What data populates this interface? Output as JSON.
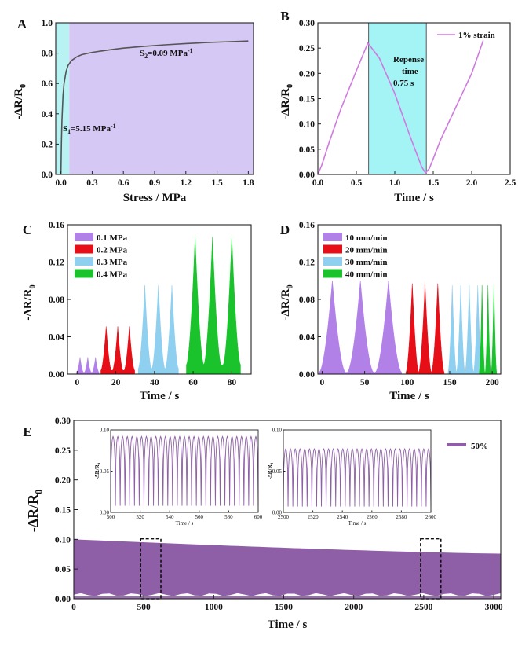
{
  "chart_data": [
    {
      "panel": "A",
      "type": "line",
      "xlabel": "Stress / MPa",
      "ylabel": "-ΔR/R0",
      "xlim": [
        -0.05,
        1.85
      ],
      "ylim": [
        0,
        1.0
      ],
      "xticks": [
        "0.0",
        "0.3",
        "0.6",
        "0.9",
        "1.2",
        "1.5",
        "1.8"
      ],
      "yticks": [
        "0.0",
        "0.2",
        "0.4",
        "0.6",
        "0.8",
        "1.0"
      ],
      "regions": [
        {
          "x0": -0.05,
          "x1": 0.08,
          "color": "#b9f2f3"
        },
        {
          "x0": 0.08,
          "x1": 1.85,
          "color": "#d6c8f4"
        }
      ],
      "series": [
        {
          "name": "response",
          "color": "#555555",
          "x": [
            0.0,
            0.005,
            0.01,
            0.02,
            0.03,
            0.05,
            0.07,
            0.1,
            0.15,
            0.2,
            0.3,
            0.4,
            0.5,
            0.6,
            0.8,
            1.0,
            1.2,
            1.4,
            1.6,
            1.8
          ],
          "y": [
            0.0,
            0.22,
            0.36,
            0.52,
            0.6,
            0.68,
            0.72,
            0.75,
            0.775,
            0.79,
            0.805,
            0.815,
            0.825,
            0.833,
            0.845,
            0.855,
            0.863,
            0.87,
            0.875,
            0.88
          ]
        }
      ],
      "annotations": [
        {
          "main": "S",
          "sub": "1",
          "tail": "=5.15 MPa",
          "sup": "-1"
        },
        {
          "main": "S",
          "sub": "2",
          "tail": "=0.09 MPa",
          "sup": "-1"
        }
      ]
    },
    {
      "panel": "B",
      "type": "line",
      "xlabel": "Time / s",
      "ylabel": "-ΔR/R0",
      "xlim": [
        0,
        2.5
      ],
      "ylim": [
        0,
        0.3
      ],
      "xticks": [
        "0.0",
        "0.5",
        "1.0",
        "1.5",
        "2.0",
        "2.5"
      ],
      "yticks": [
        "0.00",
        "0.05",
        "0.10",
        "0.15",
        "0.20",
        "0.25",
        "0.30"
      ],
      "regions": [
        {
          "x0": 0.66,
          "x1": 1.41,
          "color": "#a4f3f5"
        }
      ],
      "series": [
        {
          "name": "1% strain",
          "color": "#d07ae0",
          "x": [
            0.0,
            0.05,
            0.15,
            0.3,
            0.5,
            0.65,
            0.8,
            1.0,
            1.2,
            1.35,
            1.4,
            1.45,
            1.6,
            1.8,
            2.0,
            2.15
          ],
          "y": [
            0.0,
            0.018,
            0.065,
            0.13,
            0.205,
            0.26,
            0.23,
            0.16,
            0.075,
            0.015,
            0.003,
            0.012,
            0.07,
            0.135,
            0.2,
            0.265
          ]
        }
      ],
      "annotations": [
        "Repense",
        "time",
        "0.75 s"
      ]
    },
    {
      "panel": "C",
      "type": "area",
      "xlabel": "Time / s",
      "ylabel": "-ΔR/R0",
      "xlim": [
        -5,
        90
      ],
      "ylim": [
        0,
        0.16
      ],
      "xticks": [
        "0",
        "20",
        "40",
        "60",
        "80"
      ],
      "yticks": [
        "0.00",
        "0.04",
        "0.08",
        "0.12",
        "0.16"
      ],
      "series": [
        {
          "name": "0.1 MPa",
          "color": "#b281e8",
          "peaks": [
            1.5,
            5.5,
            9.5
          ],
          "height": 0.018,
          "width": 3.6,
          "base": 0.002
        },
        {
          "name": "0.2 MPa",
          "color": "#e60f18",
          "peaks": [
            15,
            21,
            27
          ],
          "height": 0.051,
          "width": 5.5,
          "base": 0.004
        },
        {
          "name": "0.3 MPa",
          "color": "#8fcff0",
          "peaks": [
            35,
            42,
            49
          ],
          "height": 0.095,
          "width": 6.8,
          "base": 0.006
        },
        {
          "name": "0.4 MPa",
          "color": "#1ac32c",
          "peaks": [
            61,
            70,
            80
          ],
          "height": 0.147,
          "width": 9,
          "base": 0.01
        }
      ]
    },
    {
      "panel": "D",
      "type": "area",
      "xlabel": "Time / s",
      "ylabel": "-ΔR/R0",
      "xlim": [
        -5,
        210
      ],
      "ylim": [
        0,
        0.16
      ],
      "xticks": [
        "0",
        "50",
        "100",
        "150",
        "200"
      ],
      "yticks": [
        "0.00",
        "0.04",
        "0.08",
        "0.12",
        "0.16"
      ],
      "series": [
        {
          "name": "10 mm/min",
          "color": "#b281e8",
          "peaks": [
            12,
            45,
            78
          ],
          "height": 0.1,
          "width": 31,
          "base": 0.002
        },
        {
          "name": "20 mm/min",
          "color": "#e60f18",
          "peaks": [
            106,
            121,
            136
          ],
          "height": 0.097,
          "width": 15,
          "base": 0.002
        },
        {
          "name": "30 mm/min",
          "color": "#8fcff0",
          "peaks": [
            153,
            163,
            173,
            183
          ],
          "height": 0.095,
          "width": 10,
          "base": 0.002
        },
        {
          "name": "40 mm/min",
          "color": "#1ac32c",
          "peaks": [
            188,
            195,
            202
          ],
          "height": 0.095,
          "width": 6.5,
          "base": 0.002
        }
      ]
    },
    {
      "panel": "E",
      "type": "area",
      "xlabel": "Time / s",
      "ylabel": "-ΔR/R0",
      "xlim": [
        0,
        3050
      ],
      "ylim": [
        0,
        0.3
      ],
      "xticks": [
        "0",
        "500",
        "1000",
        "1500",
        "2000",
        "2500",
        "3000"
      ],
      "yticks": [
        "0.00",
        "0.05",
        "0.10",
        "0.15",
        "0.20",
        "0.25",
        "0.30"
      ],
      "series": [
        {
          "name": "50%",
          "color": "#8e5fa6",
          "top_start": 0.1,
          "top_end": 0.076,
          "bottom": 0.007
        }
      ],
      "highlight_boxes": [
        {
          "x0": 500,
          "x1": 600
        },
        {
          "x0": 2500,
          "x1": 2600
        }
      ],
      "insets": [
        {
          "xlim": [
            500,
            600
          ],
          "ylim": [
            0,
            0.1
          ],
          "xticks": [
            "500",
            "520",
            "540",
            "560",
            "580",
            "600"
          ],
          "yticks": [
            "0.00",
            "0.05",
            "0.10"
          ],
          "xlabel": "Time / s",
          "ylabel": "-ΔR/R0",
          "cycles": 31,
          "peak": 0.092,
          "trough": 0.008,
          "color": "#8e5fa6"
        },
        {
          "xlim": [
            2500,
            2600
          ],
          "ylim": [
            0,
            0.1
          ],
          "xticks": [
            "2500",
            "2520",
            "2540",
            "2560",
            "2580",
            "2600"
          ],
          "yticks": [
            "0.00",
            "0.05",
            "0.10"
          ],
          "xlabel": "Time / s",
          "ylabel": "-ΔR/R0",
          "cycles": 31,
          "peak": 0.077,
          "trough": 0.007,
          "color": "#8e5fa6"
        }
      ]
    }
  ]
}
